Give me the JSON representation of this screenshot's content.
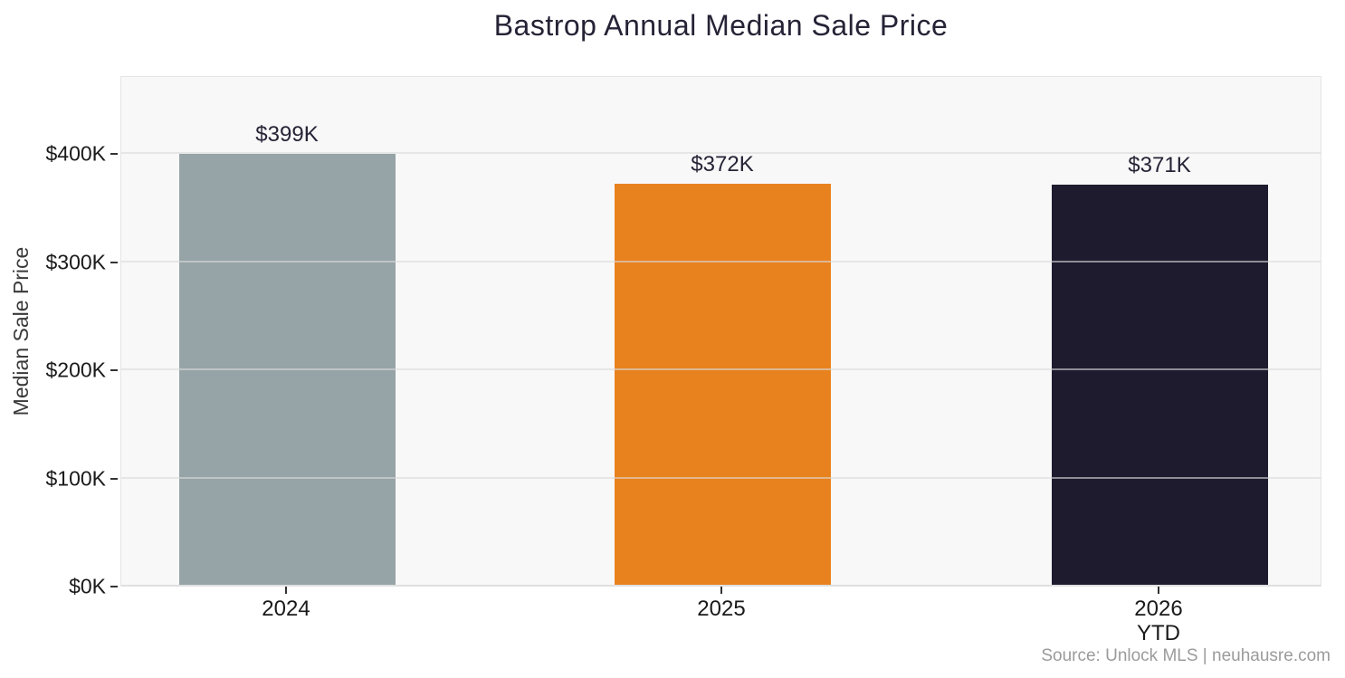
{
  "chart_data": {
    "type": "bar",
    "title": "Bastrop Annual Median Sale Price",
    "xlabel": "",
    "ylabel": "Median Sale Price",
    "categories": [
      "2024",
      "2025",
      "2026\nYTD"
    ],
    "values": [
      399,
      372,
      371
    ],
    "value_labels": [
      "$399K",
      "$372K",
      "$371K"
    ],
    "bar_colors": [
      "#96a3a7",
      "#e8821e",
      "#1e1b2f"
    ],
    "units": "USD thousands",
    "ylim": [
      0,
      472
    ],
    "yticks": [
      0,
      100,
      200,
      300,
      400
    ],
    "ytick_labels": [
      "$0K",
      "$100K",
      "$200K",
      "$300K",
      "$400K"
    ],
    "grid": true,
    "legend": "none",
    "plot_background": "#f8f8f8",
    "title_color": "#262336",
    "label_color": "#1a1a1a"
  },
  "source_note": "Source: Unlock MLS | neuhausre.com"
}
